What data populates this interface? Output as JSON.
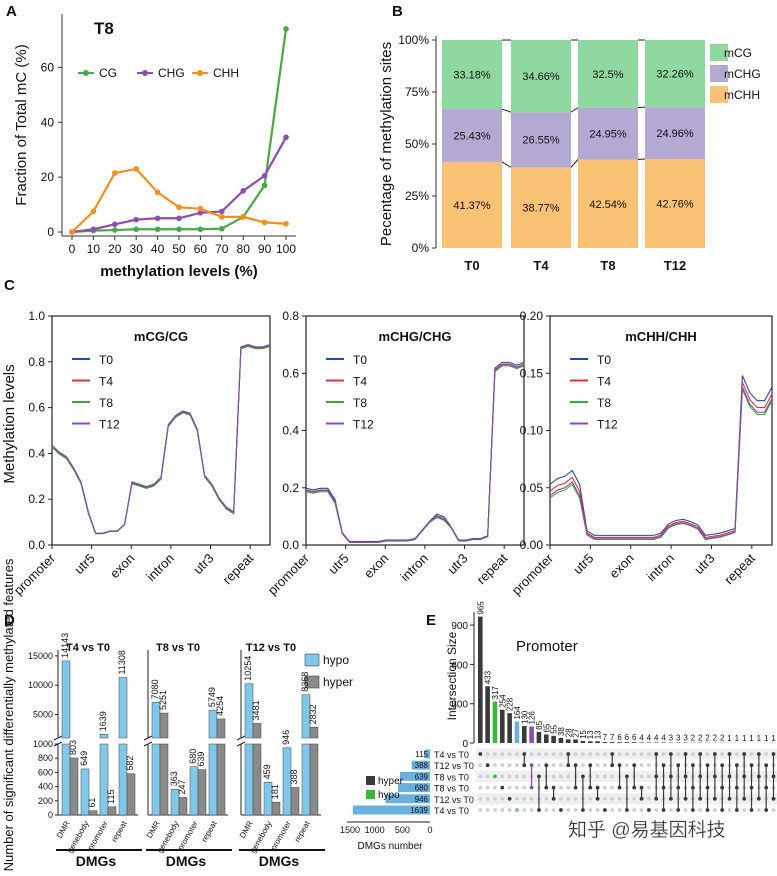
{
  "colors": {
    "CG": "#4aa84a",
    "CHG": "#8e4db0",
    "CHH": "#f0901e",
    "mCG": "#8fd8a0",
    "mCHG": "#b4a9d2",
    "mCHH": "#fac274",
    "T0": "#2a4aa0",
    "T4": "#e23030",
    "T8": "#3aa83a",
    "T12": "#8a4ab0",
    "hypo": "#80c8ea",
    "hyper": "#8a8a8a",
    "upset_dark": "#3a3a3a",
    "upset_bar": "#6ab0dc",
    "upset_green": "#3ab83a"
  },
  "panel_labels": {
    "a": "A",
    "b": "B",
    "c": "C",
    "d": "D",
    "e": "E"
  },
  "chart_data": [
    {
      "id": "A",
      "type": "line",
      "title": "T8",
      "xlabel": "methylation levels (%)",
      "ylabel": "Fraction of Total mC (%)",
      "x": [
        0,
        10,
        20,
        30,
        40,
        50,
        60,
        70,
        80,
        90,
        100
      ],
      "yticks": [
        0,
        20,
        40,
        60
      ],
      "ylim": [
        0,
        78
      ],
      "series": [
        {
          "name": "CG",
          "values": [
            0,
            0.5,
            0.7,
            1,
            1,
            1,
            1,
            1.2,
            5.5,
            17,
            74
          ]
        },
        {
          "name": "CHG",
          "values": [
            0,
            1,
            2.8,
            4.5,
            5,
            5,
            7,
            7.5,
            15,
            20.5,
            34.5
          ]
        },
        {
          "name": "CHH",
          "values": [
            0,
            7.5,
            21.5,
            23,
            14.5,
            9,
            8.5,
            5.5,
            5.5,
            3.5,
            3
          ]
        }
      ]
    },
    {
      "id": "B",
      "type": "bar",
      "stacked": true,
      "ylabel": "Pecentage of methylation sites",
      "categories": [
        "T0",
        "T4",
        "T8",
        "T12"
      ],
      "yticks": [
        "0%",
        "25%",
        "50%",
        "75%",
        "100%"
      ],
      "ylim": [
        0,
        100
      ],
      "series": [
        {
          "name": "mCHH",
          "values": [
            41.37,
            38.77,
            42.54,
            42.76
          ],
          "labels": [
            "41.37%",
            "38.77%",
            "42.54%",
            "42.76%"
          ]
        },
        {
          "name": "mCHG",
          "values": [
            25.43,
            26.55,
            24.95,
            24.96
          ],
          "labels": [
            "25.43%",
            "26.55%",
            "24.95%",
            "24.96%"
          ]
        },
        {
          "name": "mCG",
          "values": [
            33.18,
            34.66,
            32.5,
            32.26
          ],
          "labels": [
            "33.18%",
            "34.66%",
            "32.5%",
            "32.26%"
          ]
        }
      ]
    },
    {
      "id": "C",
      "type": "line",
      "ylabel": "Methylation levels",
      "series_names": [
        "T0",
        "T4",
        "T8",
        "T12"
      ],
      "regions": [
        "promoter",
        "utr5",
        "exon",
        "intron",
        "utr3",
        "repeat"
      ],
      "subplots": [
        {
          "title": "mCG/CG",
          "ylim": [
            0,
            1
          ],
          "yticks": [
            "0.0",
            "0.2",
            "0.4",
            "0.6",
            "0.8",
            "1.0"
          ],
          "profile": [
            0.43,
            0.4,
            0.38,
            0.33,
            0.27,
            0.14,
            0.05,
            0.05,
            0.06,
            0.06,
            0.09,
            0.27,
            0.26,
            0.25,
            0.26,
            0.29,
            0.52,
            0.56,
            0.58,
            0.57,
            0.5,
            0.3,
            0.26,
            0.2,
            0.16,
            0.14,
            0.86,
            0.87,
            0.86,
            0.86,
            0.87
          ],
          "offsets": [
            0.005,
            0,
            -0.003,
            0.003
          ]
        },
        {
          "title": "mCHG/CHG",
          "ylim": [
            0,
            0.8
          ],
          "yticks": [
            "0.0",
            "0.2",
            "0.4",
            "0.6",
            "0.8"
          ],
          "profile": [
            0.19,
            0.185,
            0.19,
            0.19,
            0.15,
            0.04,
            0.01,
            0.01,
            0.01,
            0.01,
            0.01,
            0.015,
            0.015,
            0.015,
            0.015,
            0.02,
            0.05,
            0.08,
            0.1,
            0.09,
            0.06,
            0.015,
            0.015,
            0.02,
            0.02,
            0.03,
            0.61,
            0.63,
            0.63,
            0.62,
            0.63
          ],
          "offsets": [
            0.008,
            0.002,
            -0.004,
            0
          ]
        },
        {
          "title": "mCHH/CHH",
          "ylim": [
            0,
            0.2
          ],
          "yticks": [
            "0.00",
            "0.05",
            "0.10",
            "0.15",
            "0.20"
          ],
          "profile": [
            0.045,
            0.05,
            0.052,
            0.057,
            0.045,
            0.01,
            0.006,
            0.006,
            0.006,
            0.006,
            0.006,
            0.006,
            0.006,
            0.006,
            0.006,
            0.008,
            0.016,
            0.019,
            0.02,
            0.018,
            0.015,
            0.006,
            0.007,
            0.008,
            0.01,
            0.012,
            0.14,
            0.125,
            0.118,
            0.118,
            0.13
          ],
          "offsets": [
            0.008,
            0.002,
            -0.004,
            -0.002
          ]
        }
      ]
    },
    {
      "id": "D",
      "type": "bar",
      "ylabel": "Number of significant differentially methylated features",
      "legend": [
        "hypo",
        "hyper"
      ],
      "categories": [
        "DMR",
        "genebody",
        "promoter",
        "repeat"
      ],
      "group_label": "DMGs",
      "upper_ticks": [
        "5000",
        "10000",
        "15000"
      ],
      "lower_ticks": [
        "0",
        "200",
        "400",
        "600",
        "800",
        "1000"
      ],
      "subplots": [
        {
          "title": "T4 vs T0",
          "hypo": [
            14143,
            649,
            1639,
            11308
          ],
          "hyper": [
            803,
            61,
            115,
            582
          ]
        },
        {
          "title": "T8 vs T0",
          "hypo": [
            7080,
            363,
            680,
            5749
          ],
          "hyper": [
            5251,
            247,
            639,
            4254
          ]
        },
        {
          "title": "T12 vs T0",
          "hypo": [
            10254,
            459,
            946,
            8368
          ],
          "hyper": [
            3481,
            181,
            388,
            2832
          ]
        }
      ]
    },
    {
      "id": "E",
      "type": "upset",
      "title": "Promoter",
      "ylabel": "Intersection Size",
      "xlabel": "DMGs number",
      "yticks": [
        "0",
        "300",
        "600",
        "900"
      ],
      "ylim": [
        0,
        1000
      ],
      "set_axis_ticks": [
        "1500",
        "1000",
        "500",
        "0"
      ],
      "intersections": [
        965,
        433,
        317,
        254,
        228,
        164,
        130,
        126,
        85,
        65,
        55,
        38,
        28,
        27,
        15,
        13,
        13,
        7,
        7,
        6,
        6,
        6,
        4,
        4,
        4,
        4,
        3,
        3,
        3,
        2,
        2,
        2,
        2,
        2,
        1,
        1,
        1,
        1,
        1,
        1,
        1,
        1
      ],
      "highlight": [
        {
          "index": 2,
          "color": "upset_green"
        },
        {
          "index": 5,
          "color": "upset_bar"
        },
        {
          "index": 7,
          "color": "CHG"
        }
      ],
      "sets": [
        {
          "name": "T4 vs T0",
          "size": 115
        },
        {
          "name": "T12 vs T0",
          "size": 388
        },
        {
          "name": "T8 vs T0",
          "size": 639
        },
        {
          "name": "T8 vs T0",
          "size": 680,
          "green": true
        },
        {
          "name": "T12 vs T0",
          "size": 946,
          "green": true
        },
        {
          "name": "T4 vs T0",
          "size": 1639,
          "green": true
        }
      ],
      "legend": [
        {
          "label": "hyper",
          "color": "upset_dark"
        },
        {
          "label": "hypo",
          "color": "upset_green"
        }
      ]
    }
  ],
  "watermark": "知乎 @易基因科技"
}
